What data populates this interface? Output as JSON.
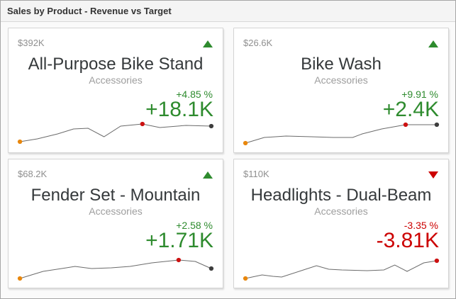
{
  "window": {
    "title": "Sales by Product - Revenue vs Target"
  },
  "colors": {
    "positive": "#2e8b2e",
    "negative": "#cc0000",
    "spark_line": "#6b6b6b",
    "dot_start": "#e8870d",
    "dot_marker": "#cc1111",
    "dot_end": "#3d3d3d"
  },
  "cards": [
    {
      "value": "$392K",
      "title": "All-Purpose Bike Stand",
      "subtitle": "Accessories",
      "percent": "+4.85 %",
      "delta": "+18.1K",
      "trend": "up",
      "tone": "positive",
      "spark": [
        [
          4,
          32
        ],
        [
          28,
          28
        ],
        [
          56,
          21
        ],
        [
          78,
          14
        ],
        [
          98,
          13
        ],
        [
          120,
          25
        ],
        [
          143,
          10
        ],
        [
          173,
          7
        ],
        [
          197,
          12
        ],
        [
          233,
          9
        ],
        [
          268,
          10
        ]
      ],
      "spark_dots": [
        {
          "i": 0,
          "role": "start"
        },
        {
          "i": 7,
          "role": "marker"
        },
        {
          "i": 10,
          "role": "end"
        }
      ]
    },
    {
      "value": "$26.6K",
      "title": "Bike Wash",
      "subtitle": "Accessories",
      "percent": "+9.91 %",
      "delta": "+2.4K",
      "trend": "up",
      "tone": "positive",
      "spark": [
        [
          4,
          34
        ],
        [
          30,
          26
        ],
        [
          60,
          24
        ],
        [
          95,
          25
        ],
        [
          125,
          26
        ],
        [
          152,
          26
        ],
        [
          165,
          21
        ],
        [
          192,
          14
        ],
        [
          225,
          8
        ],
        [
          268,
          8
        ]
      ],
      "spark_dots": [
        {
          "i": 0,
          "role": "start"
        },
        {
          "i": 8,
          "role": "marker"
        },
        {
          "i": 9,
          "role": "end"
        }
      ]
    },
    {
      "value": "$68.2K",
      "title": "Fender Set - Mountain",
      "subtitle": "Accessories",
      "percent": "+2.58 %",
      "delta": "+1.71K",
      "trend": "up",
      "tone": "positive",
      "spark": [
        [
          4,
          34
        ],
        [
          36,
          24
        ],
        [
          68,
          19
        ],
        [
          80,
          17
        ],
        [
          103,
          20
        ],
        [
          130,
          19
        ],
        [
          156,
          17
        ],
        [
          186,
          12
        ],
        [
          223,
          8
        ],
        [
          246,
          10
        ],
        [
          268,
          20
        ]
      ],
      "spark_dots": [
        {
          "i": 0,
          "role": "start"
        },
        {
          "i": 8,
          "role": "marker"
        },
        {
          "i": 10,
          "role": "end"
        }
      ]
    },
    {
      "value": "$110K",
      "title": "Headlights - Dual-Beam",
      "subtitle": "Accessories",
      "percent": "-3.35 %",
      "delta": "-3.81K",
      "trend": "down",
      "tone": "negative",
      "spark": [
        [
          4,
          34
        ],
        [
          27,
          29
        ],
        [
          42,
          31
        ],
        [
          54,
          32
        ],
        [
          84,
          22
        ],
        [
          102,
          16
        ],
        [
          119,
          21
        ],
        [
          137,
          22
        ],
        [
          172,
          23
        ],
        [
          195,
          22
        ],
        [
          210,
          15
        ],
        [
          227,
          24
        ],
        [
          250,
          12
        ],
        [
          268,
          9
        ]
      ],
      "spark_dots": [
        {
          "i": 0,
          "role": "start"
        },
        {
          "i": 13,
          "role": "marker"
        }
      ]
    }
  ],
  "chart_data": [
    {
      "type": "line",
      "title": "All-Purpose Bike Stand",
      "subtitle": "Accessories",
      "revenue": "$392K",
      "delta": "+18.1K",
      "delta_percent": "+4.85 %",
      "trend": "up",
      "axes": "none (sparkline, unlabeled)",
      "values_normalized": [
        0,
        0.16,
        0.44,
        0.72,
        0.76,
        0.28,
        0.88,
        1.0,
        0.8,
        0.92,
        0.88
      ]
    },
    {
      "type": "line",
      "title": "Bike Wash",
      "subtitle": "Accessories",
      "revenue": "$26.6K",
      "delta": "+2.4K",
      "delta_percent": "+9.91 %",
      "trend": "up",
      "axes": "none (sparkline, unlabeled)",
      "values_normalized": [
        0,
        0.31,
        0.38,
        0.35,
        0.31,
        0.31,
        0.5,
        0.77,
        1.0,
        1.0
      ]
    },
    {
      "type": "line",
      "title": "Fender Set - Mountain",
      "subtitle": "Accessories",
      "revenue": "$68.2K",
      "delta": "+1.71K",
      "delta_percent": "+2.58 %",
      "trend": "up",
      "axes": "none (sparkline, unlabeled)",
      "values_normalized": [
        0,
        0.38,
        0.58,
        0.65,
        0.54,
        0.58,
        0.65,
        0.85,
        1.0,
        0.92,
        0.54
      ]
    },
    {
      "type": "line",
      "title": "Headlights - Dual-Beam",
      "subtitle": "Accessories",
      "revenue": "$110K",
      "delta": "-3.81K",
      "delta_percent": "-3.35 %",
      "trend": "down",
      "axes": "none (sparkline, unlabeled)",
      "values_normalized": [
        0,
        0.2,
        0.12,
        0.08,
        0.48,
        0.72,
        0.52,
        0.48,
        0.44,
        0.48,
        0.76,
        0.4,
        0.88,
        1.0
      ]
    }
  ]
}
